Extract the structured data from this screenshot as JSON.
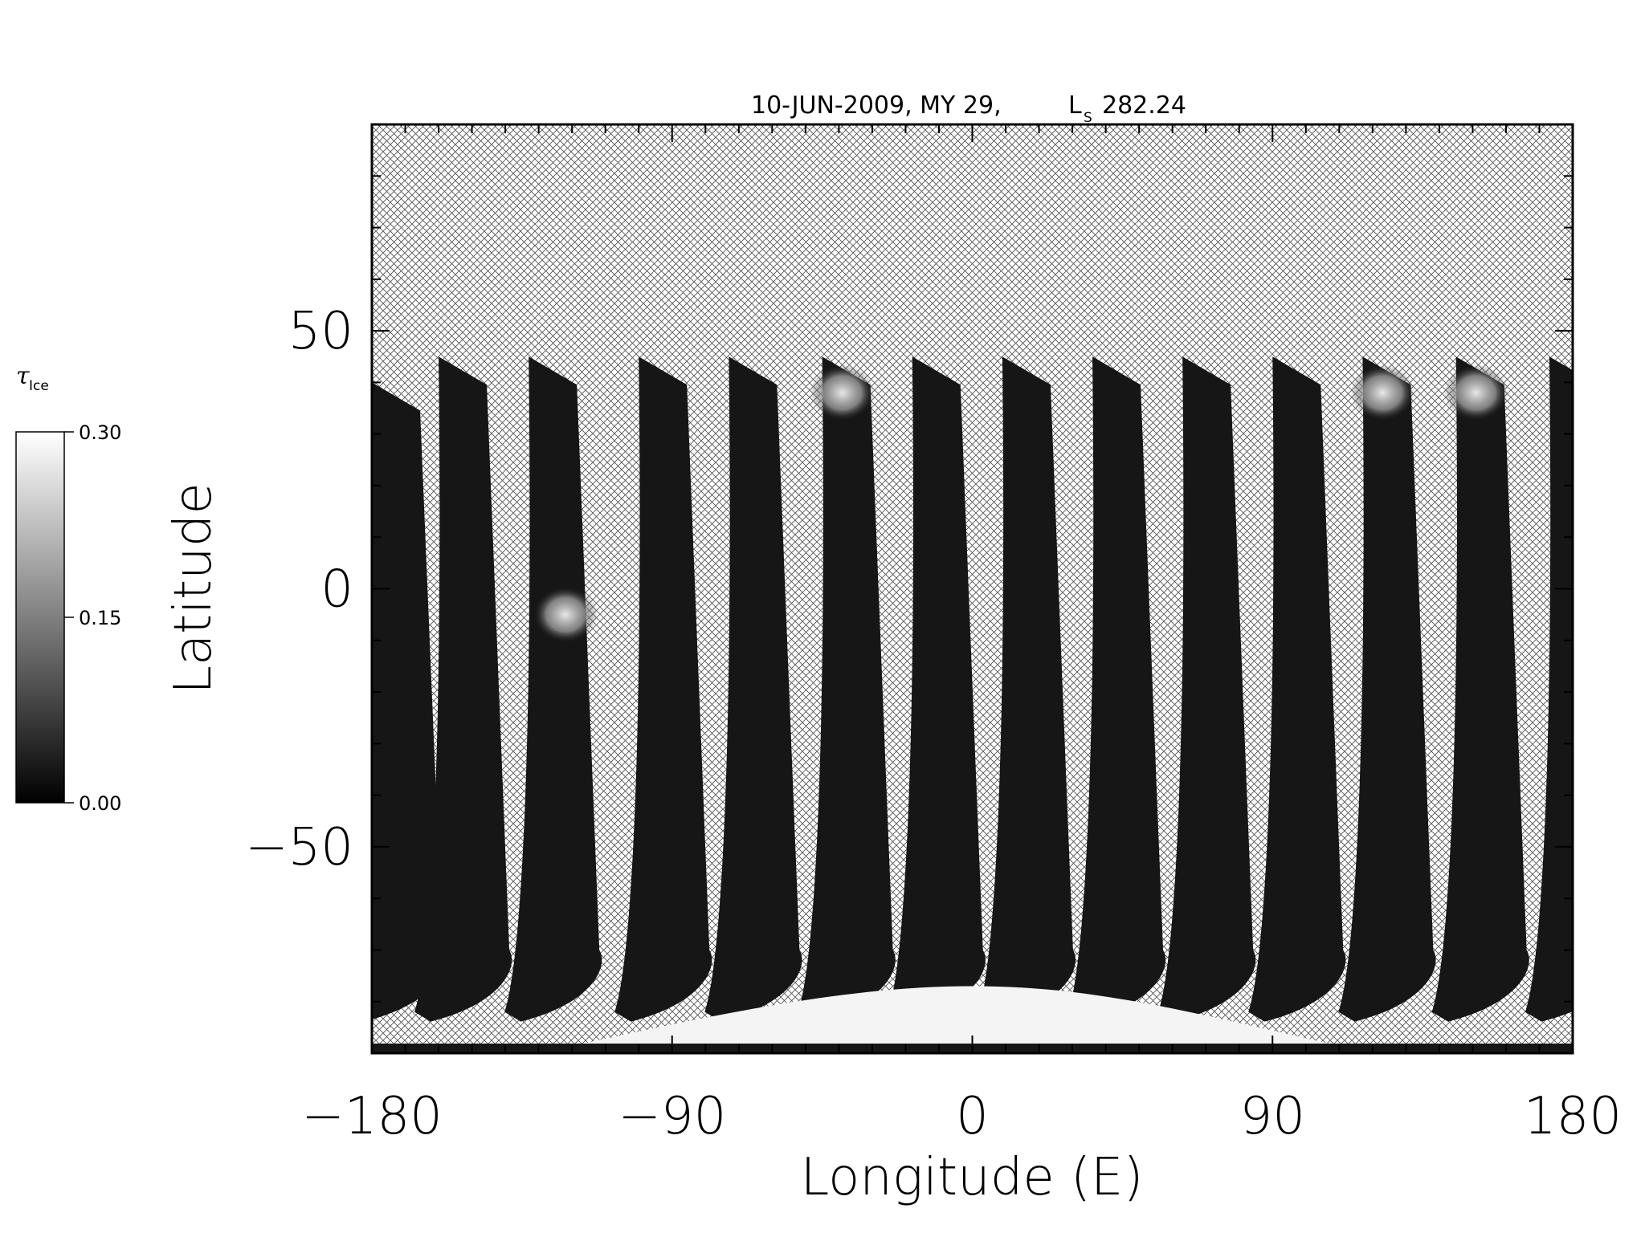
{
  "chart_data": {
    "type": "heatmap",
    "title": "10-JUN-2009, MY 29,",
    "title_ls_symbol": "L",
    "title_ls_subscript": "S",
    "title_ls_value": "282.24",
    "xlabel": "Longitude (E)",
    "ylabel": "Latitude",
    "xlim": [
      -180,
      180
    ],
    "ylim": [
      -90,
      90
    ],
    "xticks": [
      -180,
      -90,
      0,
      90,
      180
    ],
    "xtick_labels": [
      "−180",
      "−90",
      "0",
      "90",
      "180"
    ],
    "yticks": [
      50,
      0,
      -50
    ],
    "ytick_labels": [
      "50",
      "0",
      "−50"
    ],
    "colorbar": {
      "label_symbol": "τ",
      "label_subscript": "Ice",
      "min": 0.0,
      "max": 0.3,
      "ticks": [
        0.3,
        0.15,
        0.0
      ],
      "tick_labels": [
        "0.30",
        "0.15",
        "0.00"
      ],
      "colormap": "grayscale"
    },
    "no_data_fill": "crosshatch",
    "swaths": [
      {
        "top_lon": -180,
        "top_lat": 40
      },
      {
        "top_lon": -160,
        "top_lat": 45
      },
      {
        "top_lon": -133,
        "top_lat": 45
      },
      {
        "top_lon": -100,
        "top_lat": 45
      },
      {
        "top_lon": -73,
        "top_lat": 45
      },
      {
        "top_lon": -45,
        "top_lat": 45
      },
      {
        "top_lon": -18,
        "top_lat": 45
      },
      {
        "top_lon": 9,
        "top_lat": 45
      },
      {
        "top_lon": 36,
        "top_lat": 45
      },
      {
        "top_lon": 63,
        "top_lat": 45
      },
      {
        "top_lon": 90,
        "top_lat": 45
      },
      {
        "top_lon": 117,
        "top_lat": 45
      },
      {
        "top_lon": 145,
        "top_lat": 45
      },
      {
        "top_lon": 173,
        "top_lat": 45
      }
    ],
    "polar_cap": {
      "lat_top": -77,
      "lon_min": -130,
      "lon_max": 120,
      "tau": 0.3
    }
  }
}
